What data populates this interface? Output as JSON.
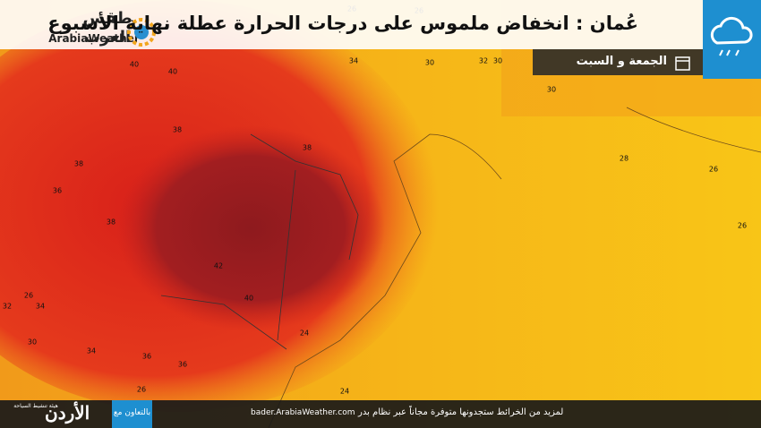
{
  "header": {
    "logo_arabic": "طقس العرب",
    "logo_latin": "ArabiaWeather",
    "title": "عُمان : انخفاض ملموس على درجات الحرارة عطلة نهاية الأسبوع",
    "subtitle": "الجمعة و السبت"
  },
  "map": {
    "contour_labels": [
      26,
      26,
      40,
      40,
      34,
      30,
      32,
      30,
      30,
      38,
      38,
      38,
      28,
      26,
      36,
      38,
      26,
      42,
      40,
      26,
      34,
      32,
      30,
      34,
      24,
      36,
      36,
      26,
      24
    ]
  },
  "footer": {
    "note": "لمزيد من الخرائط ستجدونها متوفرة مجاناً عبر نظام بدر",
    "url": "bader.ArabiaWeather.com",
    "partner": "بالتعاون مع",
    "jordan": "الأردن",
    "jordan_sub": "هيئة تنشيط السياحة"
  }
}
